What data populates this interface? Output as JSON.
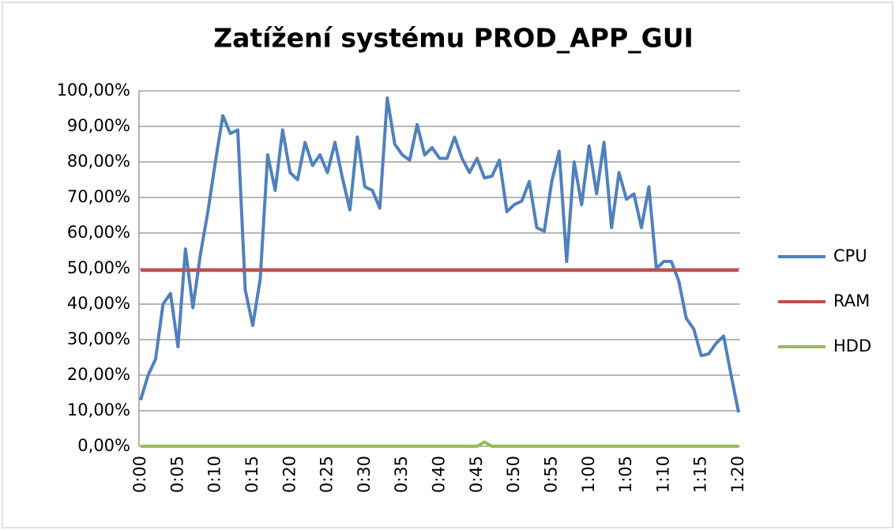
{
  "chart_data": {
    "type": "line",
    "title": "Zatížení systému PROD_APP_GUI",
    "categories": [
      "0:00",
      null,
      null,
      null,
      null,
      "0:05",
      null,
      null,
      null,
      null,
      "0:10",
      null,
      null,
      null,
      null,
      "0:15",
      null,
      null,
      null,
      null,
      "0:20",
      null,
      null,
      null,
      null,
      "0:25",
      null,
      null,
      null,
      null,
      "0:30",
      null,
      null,
      null,
      null,
      "0:35",
      null,
      null,
      null,
      null,
      "0:40",
      null,
      null,
      null,
      null,
      "0:45",
      null,
      null,
      null,
      null,
      "0:50",
      null,
      null,
      null,
      null,
      "0:55",
      null,
      null,
      null,
      null,
      "1:00",
      null,
      null,
      null,
      null,
      "1:05",
      null,
      null,
      null,
      null,
      "1:10",
      null,
      null,
      null,
      null,
      "1:15",
      null,
      null,
      null,
      null,
      "1:20"
    ],
    "series": [
      {
        "name": "CPU",
        "color": "#4f81bd",
        "values": [
          13,
          20,
          24.5,
          40,
          43,
          28,
          55.5,
          39,
          54,
          66,
          80,
          93,
          88,
          89,
          44,
          34,
          47,
          82,
          72,
          89,
          77,
          75,
          85.5,
          79,
          82,
          77,
          85.5,
          75.5,
          66.5,
          87,
          73,
          72,
          67,
          98,
          85,
          82,
          80.5,
          90.5,
          82,
          84,
          81,
          81,
          87,
          81,
          77,
          81,
          75.5,
          76,
          80.5,
          66,
          68,
          69,
          74.5,
          61.5,
          60.5,
          74.5,
          83,
          52,
          80,
          68,
          84.5,
          71,
          85.5,
          61.5,
          77,
          69.5,
          71,
          61.5,
          73,
          50,
          52,
          52,
          46.5,
          36,
          33,
          25.5,
          26,
          29,
          31,
          20,
          9.5
        ]
      },
      {
        "name": "RAM",
        "color": "#c0504d",
        "values": [
          49.5,
          49.5,
          49.5,
          49.5,
          49.5,
          49.5,
          49.5,
          49.5,
          49.5,
          49.5,
          49.5,
          49.5,
          49.5,
          49.5,
          49.5,
          49.5,
          49.5,
          49.5,
          49.5,
          49.5,
          49.5,
          49.5,
          49.5,
          49.5,
          49.5,
          49.5,
          49.5,
          49.5,
          49.5,
          49.5,
          49.5,
          49.5,
          49.5,
          49.5,
          49.5,
          49.5,
          49.5,
          49.5,
          49.5,
          49.5,
          49.5,
          49.5,
          49.5,
          49.5,
          49.5,
          49.5,
          49.5,
          49.5,
          49.5,
          49.5,
          49.5,
          49.5,
          49.5,
          49.5,
          49.5,
          49.5,
          49.5,
          49.5,
          49.5,
          49.5,
          49.5,
          49.5,
          49.5,
          49.5,
          49.5,
          49.5,
          49.5,
          49.5,
          49.5,
          49.5,
          49.5,
          49.5,
          49.5,
          49.5,
          49.5,
          49.5,
          49.5,
          49.5,
          49.5,
          49.5,
          49.5
        ]
      },
      {
        "name": "HDD",
        "color": "#9bbb59",
        "values": [
          0,
          0,
          0,
          0,
          0,
          0,
          0,
          0,
          0,
          0,
          0,
          0,
          0,
          0,
          0,
          0,
          0,
          0,
          0,
          0,
          0,
          0,
          0,
          0,
          0,
          0,
          0,
          0,
          0,
          0,
          0,
          0,
          0,
          0,
          0,
          0,
          0,
          0,
          0,
          0,
          0,
          0,
          0,
          0,
          0,
          0,
          1.2,
          0,
          0,
          0,
          0,
          0,
          0,
          0,
          0,
          0,
          0,
          0,
          0,
          0,
          0,
          0,
          0,
          0,
          0,
          0,
          0,
          0,
          0,
          0,
          0,
          0,
          0,
          0,
          0,
          0,
          0,
          0,
          0,
          0,
          0
        ]
      }
    ],
    "ylim": [
      0,
      100
    ],
    "yticks": [
      {
        "value": 0,
        "label": "0,00%"
      },
      {
        "value": 10,
        "label": "10,00%"
      },
      {
        "value": 20,
        "label": "20,00%"
      },
      {
        "value": 30,
        "label": "30,00%"
      },
      {
        "value": 40,
        "label": "40,00%"
      },
      {
        "value": 50,
        "label": "50,00%"
      },
      {
        "value": 60,
        "label": "60,00%"
      },
      {
        "value": 70,
        "label": "70,00%"
      },
      {
        "value": 80,
        "label": "80,00%"
      },
      {
        "value": 90,
        "label": "90,00%"
      },
      {
        "value": 100,
        "label": "100,00%"
      }
    ],
    "grid": true,
    "legend": "right"
  }
}
